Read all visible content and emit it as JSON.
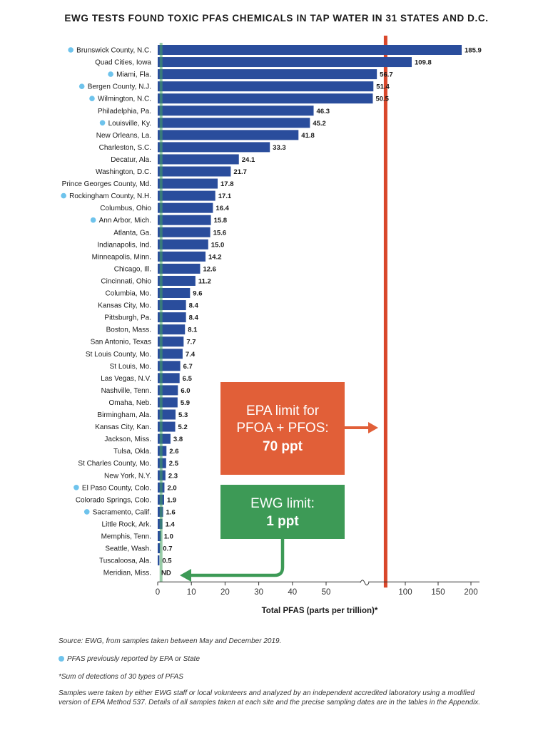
{
  "chart_data": {
    "type": "bar",
    "orientation": "horizontal",
    "title": "EWG TESTS FOUND TOXIC PFAS CHEMICALS IN TAP WATER IN 31 STATES AND D.C.",
    "xlabel": "Total PFAS (parts per trillion)*",
    "x_axis": {
      "break": true,
      "segment_1": {
        "range": [
          0,
          50
        ],
        "ticks": [
          0,
          10,
          20,
          30,
          40,
          50
        ]
      },
      "segment_2": {
        "range": [
          50,
          200
        ],
        "ticks": [
          100,
          150,
          200
        ]
      }
    },
    "colors": {
      "bar": "#2a4d9c",
      "epa_line": "#d9472b",
      "ewg_line": "#43a35f",
      "dot": "#6ec3ec"
    },
    "categories": [
      "Brunswick County, N.C.",
      "Quad Cities, Iowa",
      "Miami, Fla.",
      "Bergen County, N.J.",
      "Wilmington, N.C.",
      "Philadelphia, Pa.",
      "Louisville, Ky.",
      "New Orleans, La.",
      "Charleston, S.C.",
      "Decatur, Ala.",
      "Washington, D.C.",
      "Prince Georges County, Md.",
      "Rockingham County, N.H.",
      "Columbus, Ohio",
      "Ann Arbor, Mich.",
      "Atlanta, Ga.",
      "Indianapolis, Ind.",
      "Minneapolis, Minn.",
      "Chicago, Ill.",
      "Cincinnati, Ohio",
      "Columbia, Mo.",
      "Kansas City, Mo.",
      "Pittsburgh, Pa.",
      "Boston, Mass.",
      "San Antonio, Texas",
      "St Louis County, Mo.",
      "St Louis, Mo.",
      "Las Vegas, N.V.",
      "Nashville, Tenn.",
      "Omaha, Neb.",
      "Birmingham, Ala.",
      "Kansas City, Kan.",
      "Jackson, Miss.",
      "Tulsa, Okla.",
      "St Charles County, Mo.",
      "New York, N.Y.",
      "El Paso County, Colo.",
      "Colorado Springs, Colo.",
      "Sacramento, Calif.",
      "Little Rock, Ark.",
      "Memphis, Tenn.",
      "Seattle, Wash.",
      "Tuscaloosa, Ala.",
      "Meridian, Miss."
    ],
    "values": [
      185.9,
      109.8,
      56.7,
      51.4,
      50.5,
      46.3,
      45.2,
      41.8,
      33.3,
      24.1,
      21.7,
      17.8,
      17.1,
      16.4,
      15.8,
      15.6,
      15.0,
      14.2,
      12.6,
      11.2,
      9.6,
      8.4,
      8.4,
      8.1,
      7.7,
      7.4,
      6.7,
      6.5,
      6.0,
      5.9,
      5.3,
      5.2,
      3.8,
      2.6,
      2.5,
      2.3,
      2.0,
      1.9,
      1.6,
      1.4,
      1.0,
      0.7,
      0.5,
      0
    ],
    "value_labels": [
      "185.9",
      "109.8",
      "56.7",
      "51.4",
      "50.5",
      "46.3",
      "45.2",
      "41.8",
      "33.3",
      "24.1",
      "21.7",
      "17.8",
      "17.1",
      "16.4",
      "15.8",
      "15.6",
      "15.0",
      "14.2",
      "12.6",
      "11.2",
      "9.6",
      "8.4",
      "8.4",
      "8.1",
      "7.7",
      "7.4",
      "6.7",
      "6.5",
      "6.0",
      "5.9",
      "5.3",
      "5.2",
      "3.8",
      "2.6",
      "2.5",
      "2.3",
      "2.0",
      "1.9",
      "1.6",
      "1.4",
      "1.0",
      "0.7",
      "0.5",
      "ND"
    ],
    "previously_reported": [
      true,
      false,
      true,
      true,
      true,
      false,
      true,
      false,
      false,
      false,
      false,
      false,
      true,
      false,
      true,
      false,
      false,
      false,
      false,
      false,
      false,
      false,
      false,
      false,
      false,
      false,
      false,
      false,
      false,
      false,
      false,
      false,
      false,
      false,
      false,
      false,
      true,
      false,
      true,
      false,
      false,
      false,
      false,
      false
    ],
    "reference_lines": [
      {
        "name": "EPA limit",
        "value": 70
      },
      {
        "name": "EWG limit",
        "value": 1
      }
    ],
    "annotations": [
      {
        "line1": "EPA limit for",
        "line2": "PFOA + PFOS:",
        "line3": "70 ppt",
        "color": "#e15f38"
      },
      {
        "line1": "EWG limit:",
        "line2": "1 ppt",
        "color": "#3d9a56"
      }
    ]
  },
  "footnotes": {
    "source": "Source: EWG, from samples taken between May and December 2019.",
    "legend": "PFAS previously reported by EPA or State",
    "asterisk": "*Sum of detections of 30 types of PFAS",
    "samples": "Samples were taken by either EWG staff or local volunteers and analyzed by an independent accredited laboratory using a modified version of EPA Method 537. Details of all samples taken at each site and the precise sampling dates are in the tables in the Appendix."
  }
}
